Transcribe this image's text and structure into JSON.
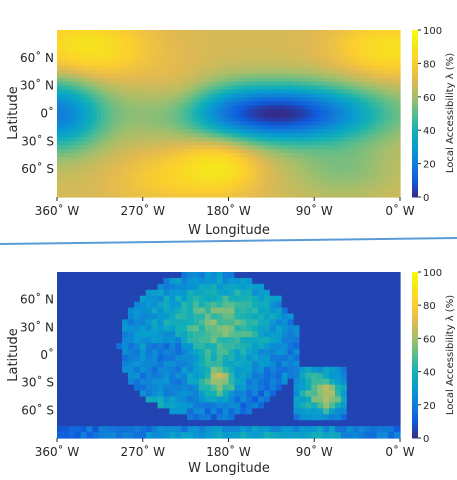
{
  "chart_data": [
    {
      "type": "heatmap",
      "title": "",
      "xlabel": "W Longitude",
      "ylabel": "Latitude",
      "x_ticks": [
        "360˚ W",
        "270˚ W",
        "180˚ W",
        "90˚ W",
        "0˚ W"
      ],
      "x_tick_values": [
        360,
        270,
        180,
        90,
        0
      ],
      "y_ticks": [
        "60˚ N",
        "30˚ N",
        "0˚",
        "30˚ S",
        "60˚ S"
      ],
      "y_tick_values": [
        60,
        30,
        0,
        -30,
        -60
      ],
      "xlim": [
        360,
        0
      ],
      "ylim": [
        -90,
        90
      ],
      "colorbar": {
        "label": "Local Accessibility λ (%)",
        "range": [
          0,
          100
        ],
        "ticks": [
          "0",
          "20",
          "40",
          "60",
          "80",
          "100"
        ],
        "tick_values": [
          0,
          20,
          40,
          60,
          80,
          100
        ],
        "colormap": "parula"
      },
      "field": {
        "base": 68,
        "features": [
          {
            "lon": 130,
            "lat": 0,
            "sx": 75,
            "sy": 22,
            "amp": -68
          },
          {
            "lon": 360,
            "lat": 0,
            "sx": 35,
            "sy": 28,
            "amp": -48
          },
          {
            "lon": 330,
            "lat": 70,
            "sx": 45,
            "sy": 25,
            "amp": 22
          },
          {
            "lon": 10,
            "lat": 70,
            "sx": 40,
            "sy": 22,
            "amp": 20
          },
          {
            "lon": 190,
            "lat": -55,
            "sx": 30,
            "sy": 22,
            "amp": 22
          },
          {
            "lon": 250,
            "lat": -70,
            "sx": 35,
            "sy": 20,
            "amp": 10
          },
          {
            "lon": 60,
            "lat": -60,
            "sx": 40,
            "sy": 22,
            "amp": -12
          },
          {
            "lon": 230,
            "lat": 10,
            "sx": 25,
            "sy": 25,
            "amp": 10
          }
        ]
      }
    },
    {
      "type": "heatmap",
      "title": "",
      "xlabel": "W Longitude",
      "ylabel": "Latitude",
      "x_ticks": [
        "360˚ W",
        "270˚ W",
        "180˚ W",
        "90˚ W",
        "0˚ W"
      ],
      "x_tick_values": [
        360,
        270,
        180,
        90,
        0
      ],
      "y_ticks": [
        "60˚ N",
        "30˚ N",
        "0˚",
        "30˚ S",
        "60˚ S"
      ],
      "y_tick_values": [
        60,
        30,
        0,
        -30,
        -60
      ],
      "xlim": [
        360,
        0
      ],
      "ylim": [
        -90,
        90
      ],
      "colorbar": {
        "label": "Local Accessibility λ (%)",
        "range": [
          0,
          100
        ],
        "ticks": [
          "0",
          "20",
          "40",
          "60",
          "80",
          "100"
        ],
        "tick_values": [
          0,
          20,
          40,
          60,
          80,
          100
        ],
        "colormap": "parula"
      },
      "field": {
        "base": 12,
        "features": [
          {
            "lon": 215,
            "lat": 25,
            "sx": 55,
            "sy": 45,
            "amp": 28
          },
          {
            "lon": 170,
            "lat": 40,
            "sx": 35,
            "sy": 30,
            "amp": 18
          },
          {
            "lon": 190,
            "lat": -30,
            "sx": 12,
            "sy": 12,
            "amp": 38
          },
          {
            "lon": 85,
            "lat": -40,
            "sx": 20,
            "sy": 22,
            "amp": 35
          },
          {
            "lon": 75,
            "lat": -45,
            "sx": 10,
            "sy": 10,
            "amp": 25
          },
          {
            "lon": 270,
            "lat": -55,
            "sx": 30,
            "sy": 8,
            "amp": 25
          },
          {
            "lon": 150,
            "lat": -85,
            "sx": 90,
            "sy": 4,
            "amp": 25
          },
          {
            "lon": 240,
            "lat": 5,
            "sx": 15,
            "sy": 15,
            "amp": -20
          }
        ],
        "mask": {
          "lon": 200,
          "lat": 10,
          "rx": 95,
          "ry": 80
        }
      }
    }
  ]
}
